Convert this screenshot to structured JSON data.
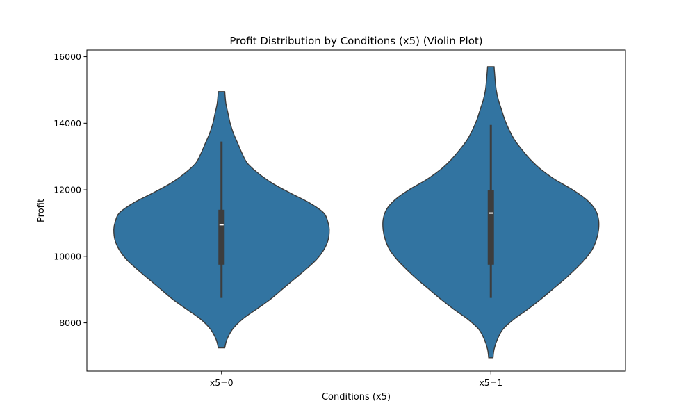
{
  "chart_data": {
    "type": "violin",
    "title": "Profit Distribution by Conditions (x5) (Violin Plot)",
    "xlabel": "Conditions (x5)",
    "ylabel": "Profit",
    "categories": [
      "x5=0",
      "x5=1"
    ],
    "ylim": [
      6550,
      16200
    ],
    "yticks": [
      8000,
      10000,
      12000,
      14000,
      16000
    ],
    "grid": false,
    "colors": {
      "violin_fill": "#3274a1",
      "violin_edge": "#3a3a3a",
      "box": "#3d3d3d",
      "median": "#ffffff"
    },
    "violins": [
      {
        "category": "x5=0",
        "min": 7250,
        "max": 14950,
        "q1": 9750,
        "median": 10950,
        "q3": 11400,
        "whisker_low": 8750,
        "whisker_high": 13450,
        "density": [
          [
            7250,
            0.03
          ],
          [
            7500,
            0.05
          ],
          [
            7800,
            0.1
          ],
          [
            8100,
            0.19
          ],
          [
            8400,
            0.32
          ],
          [
            8700,
            0.45
          ],
          [
            9000,
            0.56
          ],
          [
            9300,
            0.67
          ],
          [
            9600,
            0.78
          ],
          [
            9900,
            0.88
          ],
          [
            10200,
            0.95
          ],
          [
            10500,
            0.99
          ],
          [
            10800,
            1.0
          ],
          [
            11000,
            0.99
          ],
          [
            11300,
            0.95
          ],
          [
            11600,
            0.82
          ],
          [
            11900,
            0.64
          ],
          [
            12200,
            0.47
          ],
          [
            12500,
            0.34
          ],
          [
            12800,
            0.24
          ],
          [
            13100,
            0.19
          ],
          [
            13400,
            0.15
          ],
          [
            13700,
            0.11
          ],
          [
            14000,
            0.08
          ],
          [
            14300,
            0.06
          ],
          [
            14600,
            0.04
          ],
          [
            14950,
            0.03
          ]
        ]
      },
      {
        "category": "x5=1",
        "min": 6950,
        "max": 15700,
        "q1": 9750,
        "median": 11300,
        "q3": 12000,
        "whisker_low": 8750,
        "whisker_high": 13950,
        "density": [
          [
            6950,
            0.02
          ],
          [
            7200,
            0.03
          ],
          [
            7500,
            0.06
          ],
          [
            7800,
            0.11
          ],
          [
            8100,
            0.21
          ],
          [
            8400,
            0.34
          ],
          [
            8700,
            0.46
          ],
          [
            9000,
            0.57
          ],
          [
            9300,
            0.68
          ],
          [
            9600,
            0.78
          ],
          [
            9900,
            0.87
          ],
          [
            10200,
            0.94
          ],
          [
            10500,
            0.98
          ],
          [
            10800,
            1.0
          ],
          [
            11100,
            1.0
          ],
          [
            11400,
            0.97
          ],
          [
            11700,
            0.89
          ],
          [
            12000,
            0.76
          ],
          [
            12300,
            0.6
          ],
          [
            12600,
            0.47
          ],
          [
            12900,
            0.37
          ],
          [
            13200,
            0.29
          ],
          [
            13500,
            0.22
          ],
          [
            13800,
            0.17
          ],
          [
            14100,
            0.13
          ],
          [
            14400,
            0.1
          ],
          [
            14700,
            0.07
          ],
          [
            15000,
            0.05
          ],
          [
            15300,
            0.04
          ],
          [
            15700,
            0.03
          ]
        ]
      }
    ]
  }
}
